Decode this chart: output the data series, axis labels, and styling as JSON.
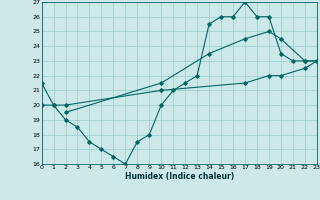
{
  "title": "",
  "xlabel": "Humidex (Indice chaleur)",
  "bg_color": "#cce8e8",
  "grid_color": "#99cccc",
  "line_color": "#006666",
  "xmin": 0,
  "xmax": 23,
  "ymin": 16,
  "ymax": 27,
  "line1_x": [
    0,
    1,
    2,
    3,
    4,
    5,
    6,
    7,
    8,
    9,
    10,
    11,
    12,
    13,
    14,
    15,
    16,
    17,
    18,
    19,
    20,
    21,
    22,
    23
  ],
  "line1_y": [
    21.5,
    20.0,
    19.0,
    18.5,
    17.5,
    17.0,
    16.5,
    16.0,
    17.5,
    18.0,
    20.0,
    21.0,
    21.5,
    22.0,
    25.5,
    26.0,
    26.0,
    27.0,
    26.0,
    26.0,
    23.5,
    23.0,
    23.0,
    23.0
  ],
  "line2_x": [
    0,
    1,
    2,
    10,
    17,
    19,
    20,
    22,
    23
  ],
  "line2_y": [
    20.0,
    20.0,
    20.0,
    21.0,
    21.5,
    22.0,
    22.0,
    22.5,
    23.0
  ],
  "line3_x": [
    2,
    10,
    14,
    17,
    19,
    20,
    22,
    23
  ],
  "line3_y": [
    19.5,
    21.5,
    23.5,
    24.5,
    25.0,
    24.5,
    23.0,
    23.0
  ]
}
